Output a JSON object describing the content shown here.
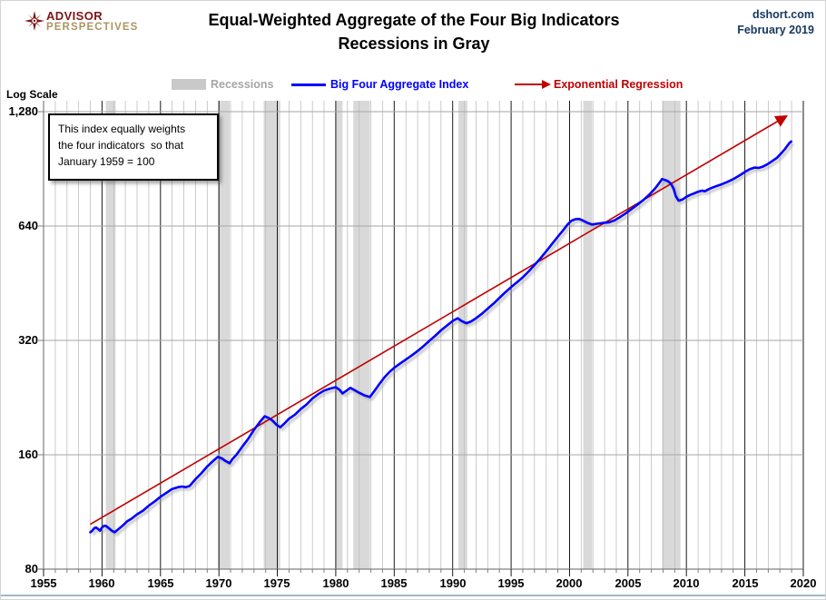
{
  "header": {
    "logo_line1": "ADVISOR",
    "logo_line2": "PERSPECTIVES",
    "title_line1": "Equal-Weighted Aggregate of the Four Big Indicators",
    "title_line2": "Recessions in Gray",
    "source": "dshort.com",
    "date": "February 2019"
  },
  "legend": {
    "recessions_label": "Recessions",
    "index_label": "Big Four Aggregate Index",
    "regression_label": "Exponential Regression"
  },
  "annotation": {
    "line1": "This index equally weights",
    "line2": "the four indicators  so that",
    "line3": "January 1959 = 100"
  },
  "axis_note": "Log Scale",
  "chart_data": {
    "type": "line",
    "y_scale": "log2",
    "x_range": [
      1955,
      2020
    ],
    "ylim": [
      80,
      1280
    ],
    "grid": "on",
    "legend_position": "top",
    "colors": {
      "recession": "#d9d9d9",
      "index": "#0000ff",
      "regression": "#c00000"
    },
    "y_ticks": [
      {
        "value": 80,
        "label": "80"
      },
      {
        "value": 160,
        "label": "160"
      },
      {
        "value": 320,
        "label": "320"
      },
      {
        "value": 640,
        "label": "640"
      },
      {
        "value": 1280,
        "label": "1,280"
      }
    ],
    "x_ticks": [
      "1955",
      "1960",
      "1965",
      "1970",
      "1975",
      "1980",
      "1985",
      "1990",
      "1995",
      "2000",
      "2005",
      "2010",
      "2015",
      "2020"
    ],
    "recessions": [
      [
        1960.33,
        1961.17
      ],
      [
        1969.92,
        1970.92
      ],
      [
        1973.83,
        1975.25
      ],
      [
        1980.0,
        1980.58
      ],
      [
        1981.5,
        1982.92
      ],
      [
        1990.5,
        1991.25
      ],
      [
        2001.17,
        2001.92
      ],
      [
        2007.92,
        2009.5
      ]
    ],
    "series": [
      {
        "name": "Big Four Aggregate Index",
        "color": "#0000ff",
        "points": [
          [
            1959.0,
            100
          ],
          [
            1959.17,
            101
          ],
          [
            1959.33,
            102.5
          ],
          [
            1959.5,
            103
          ],
          [
            1959.67,
            102
          ],
          [
            1959.83,
            101
          ],
          [
            1960.0,
            103
          ],
          [
            1960.17,
            104
          ],
          [
            1960.33,
            104
          ],
          [
            1960.58,
            102.5
          ],
          [
            1960.83,
            101
          ],
          [
            1961.08,
            100
          ],
          [
            1961.33,
            101.5
          ],
          [
            1961.58,
            103
          ],
          [
            1961.83,
            104.5
          ],
          [
            1962.17,
            107
          ],
          [
            1962.5,
            108.5
          ],
          [
            1963.0,
            111.5
          ],
          [
            1963.5,
            114
          ],
          [
            1964.0,
            117.5
          ],
          [
            1964.5,
            120.5
          ],
          [
            1965.0,
            124
          ],
          [
            1965.5,
            127
          ],
          [
            1966.0,
            130
          ],
          [
            1966.5,
            131.5
          ],
          [
            1966.83,
            132
          ],
          [
            1967.17,
            131.5
          ],
          [
            1967.5,
            132.5
          ],
          [
            1968.0,
            138
          ],
          [
            1968.5,
            143
          ],
          [
            1969.0,
            149
          ],
          [
            1969.5,
            154
          ],
          [
            1969.92,
            158
          ],
          [
            1970.25,
            156.5
          ],
          [
            1970.58,
            154
          ],
          [
            1970.92,
            152
          ],
          [
            1971.17,
            156
          ],
          [
            1971.5,
            160
          ],
          [
            1972.0,
            168
          ],
          [
            1972.5,
            176
          ],
          [
            1973.0,
            186
          ],
          [
            1973.5,
            195
          ],
          [
            1973.92,
            202
          ],
          [
            1974.25,
            200
          ],
          [
            1974.58,
            197
          ],
          [
            1974.92,
            192
          ],
          [
            1975.25,
            189
          ],
          [
            1975.58,
            193
          ],
          [
            1976.0,
            199
          ],
          [
            1976.5,
            204
          ],
          [
            1977.0,
            211
          ],
          [
            1977.5,
            217
          ],
          [
            1978.0,
            225
          ],
          [
            1978.5,
            231
          ],
          [
            1979.0,
            236
          ],
          [
            1979.5,
            239
          ],
          [
            1980.0,
            241
          ],
          [
            1980.33,
            237
          ],
          [
            1980.58,
            232
          ],
          [
            1980.92,
            236
          ],
          [
            1981.25,
            240
          ],
          [
            1981.58,
            237
          ],
          [
            1982.0,
            233
          ],
          [
            1982.5,
            229
          ],
          [
            1982.92,
            227
          ],
          [
            1983.33,
            236
          ],
          [
            1983.75,
            246
          ],
          [
            1984.17,
            256
          ],
          [
            1984.58,
            264
          ],
          [
            1985.0,
            271
          ],
          [
            1985.5,
            278
          ],
          [
            1986.0,
            285
          ],
          [
            1986.5,
            292
          ],
          [
            1987.0,
            300
          ],
          [
            1987.5,
            309
          ],
          [
            1988.0,
            319
          ],
          [
            1988.5,
            329
          ],
          [
            1989.0,
            340
          ],
          [
            1989.5,
            350
          ],
          [
            1990.0,
            360
          ],
          [
            1990.42,
            366
          ],
          [
            1990.75,
            360
          ],
          [
            1991.17,
            355
          ],
          [
            1991.58,
            359
          ],
          [
            1992.0,
            366
          ],
          [
            1992.5,
            376
          ],
          [
            1993.0,
            388
          ],
          [
            1993.5,
            400
          ],
          [
            1994.0,
            414
          ],
          [
            1994.5,
            428
          ],
          [
            1995.0,
            442
          ],
          [
            1995.5,
            455
          ],
          [
            1996.0,
            469
          ],
          [
            1996.5,
            486
          ],
          [
            1997.0,
            505
          ],
          [
            1997.5,
            526
          ],
          [
            1998.0,
            549
          ],
          [
            1998.5,
            574
          ],
          [
            1999.0,
            600
          ],
          [
            1999.42,
            622
          ],
          [
            1999.83,
            646
          ],
          [
            2000.17,
            661
          ],
          [
            2000.5,
            667
          ],
          [
            2000.83,
            668
          ],
          [
            2001.17,
            661
          ],
          [
            2001.5,
            653
          ],
          [
            2001.92,
            646
          ],
          [
            2002.33,
            649
          ],
          [
            2002.83,
            652
          ],
          [
            2003.33,
            654
          ],
          [
            2003.83,
            662
          ],
          [
            2004.33,
            676
          ],
          [
            2004.83,
            692
          ],
          [
            2005.33,
            710
          ],
          [
            2005.83,
            729
          ],
          [
            2006.33,
            750
          ],
          [
            2006.83,
            774
          ],
          [
            2007.33,
            804
          ],
          [
            2007.67,
            830
          ],
          [
            2007.92,
            851
          ],
          [
            2008.17,
            846
          ],
          [
            2008.42,
            840
          ],
          [
            2008.67,
            828
          ],
          [
            2008.92,
            800
          ],
          [
            2009.08,
            768
          ],
          [
            2009.33,
            746
          ],
          [
            2009.67,
            752
          ],
          [
            2010.0,
            764
          ],
          [
            2010.33,
            773
          ],
          [
            2010.67,
            780
          ],
          [
            2011.0,
            788
          ],
          [
            2011.33,
            793
          ],
          [
            2011.58,
            790
          ],
          [
            2012.0,
            803
          ],
          [
            2012.5,
            814
          ],
          [
            2013.0,
            824
          ],
          [
            2013.5,
            836
          ],
          [
            2014.0,
            850
          ],
          [
            2014.5,
            868
          ],
          [
            2015.0,
            888
          ],
          [
            2015.42,
            903
          ],
          [
            2015.83,
            912
          ],
          [
            2016.17,
            910
          ],
          [
            2016.5,
            916
          ],
          [
            2016.92,
            930
          ],
          [
            2017.33,
            948
          ],
          [
            2017.75,
            968
          ],
          [
            2018.08,
            992
          ],
          [
            2018.42,
            1020
          ],
          [
            2018.67,
            1045
          ],
          [
            2018.83,
            1060
          ],
          [
            2018.97,
            1068
          ]
        ]
      },
      {
        "name": "Exponential Regression",
        "color": "#c00000",
        "arrow_end": true,
        "points": [
          [
            1959.0,
            105
          ],
          [
            2018.55,
            1245
          ]
        ]
      }
    ]
  }
}
